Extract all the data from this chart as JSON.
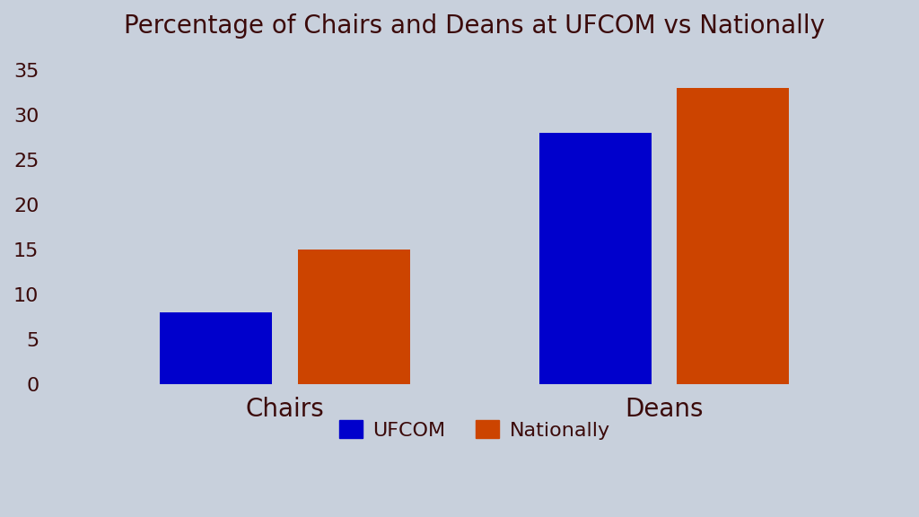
{
  "title": "Percentage of Chairs and Deans at UFCOM vs Nationally",
  "categories": [
    "Chairs",
    "Deans"
  ],
  "ufcom_values": [
    8,
    28
  ],
  "nationally_values": [
    15,
    33
  ],
  "ufcom_color": "#0000CC",
  "nationally_color": "#CC4400",
  "background_color": "#C8D0DC",
  "title_color": "#3B0A0A",
  "label_color": "#3B0A0A",
  "ylim": [
    0,
    37
  ],
  "yticks": [
    0,
    5,
    10,
    15,
    20,
    25,
    30,
    35
  ],
  "bar_width": 0.13,
  "legend_labels": [
    "UFCOM",
    "Nationally"
  ],
  "title_fontsize": 20,
  "tick_fontsize": 16,
  "category_fontsize": 20,
  "legend_fontsize": 16,
  "group_centers": [
    0.28,
    0.72
  ],
  "xlim": [
    0.0,
    1.0
  ]
}
